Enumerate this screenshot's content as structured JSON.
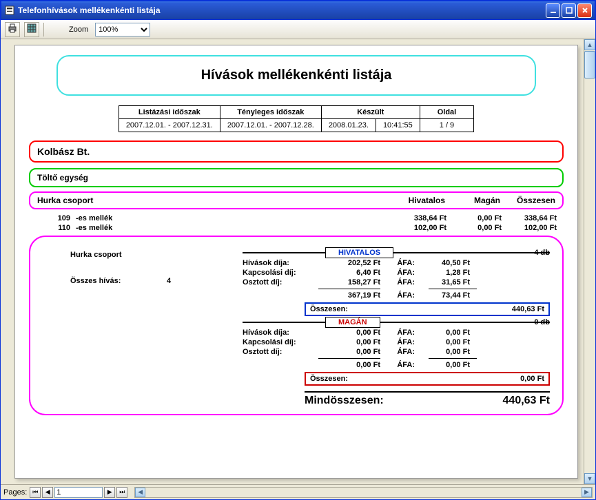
{
  "window": {
    "title": "Telefonhívások mellékenkénti  listája"
  },
  "toolbar": {
    "zoom_label": "Zoom",
    "zoom_value": "100%"
  },
  "report": {
    "title": "Hívások mellékenkénti listája",
    "meta": {
      "headers": {
        "list_period": "Listázási időszak",
        "actual_period": "Tényleges időszak",
        "created": "Készült",
        "page": "Oldal"
      },
      "list_period": "2007.12.01. - 2007.12.31.",
      "actual_period": "2007.12.01. - 2007.12.28.",
      "created_date": "2008.01.23.",
      "created_time": "10:41:55",
      "page": "1 / 9"
    },
    "company": "Kolbász Bt.",
    "unit": "Töltő egység",
    "group": {
      "name": "Hurka csoport",
      "col_official": "Hivatalos",
      "col_private": "Magán",
      "col_total": "Összesen"
    },
    "extensions": [
      {
        "num": "109",
        "label": "-es mellék",
        "official": "338,64 Ft",
        "private": "0,00 Ft",
        "total": "338,64 Ft"
      },
      {
        "num": "110",
        "label": "-es mellék",
        "official": "102,00 Ft",
        "private": "0,00 Ft",
        "total": "102,00 Ft"
      }
    ],
    "summary": {
      "group_name": "Hurka csoport",
      "total_calls_label": "Összes hívás:",
      "total_calls": "4",
      "official": {
        "tag": "HIVATALOS",
        "count": "4 db",
        "rows": [
          {
            "label": "Hívások díja:",
            "v1": "202,52 Ft",
            "afa": "ÁFA:",
            "v2": "40,50 Ft"
          },
          {
            "label": "Kapcsolási díj:",
            "v1": "6,40 Ft",
            "afa": "ÁFA:",
            "v2": "1,28 Ft"
          },
          {
            "label": "Osztott díj:",
            "v1": "158,27 Ft",
            "afa": "ÁFA:",
            "v2": "31,65 Ft"
          }
        ],
        "subtotal": {
          "v1": "367,19 Ft",
          "afa": "ÁFA:",
          "v2": "73,44 Ft"
        },
        "total_label": "Összesen:",
        "total": "440,63 Ft"
      },
      "private": {
        "tag": "MAGÁN",
        "count": "0 db",
        "rows": [
          {
            "label": "Hívások díja:",
            "v1": "0,00 Ft",
            "afa": "ÁFA:",
            "v2": "0,00 Ft"
          },
          {
            "label": "Kapcsolási díj:",
            "v1": "0,00 Ft",
            "afa": "ÁFA:",
            "v2": "0,00 Ft"
          },
          {
            "label": "Osztott díj:",
            "v1": "0,00 Ft",
            "afa": "ÁFA:",
            "v2": "0,00 Ft"
          }
        ],
        "subtotal": {
          "v1": "0,00 Ft",
          "afa": "ÁFA:",
          "v2": "0,00 Ft"
        },
        "total_label": "Összesen:",
        "total": "0,00 Ft"
      },
      "grand_label": "Mindösszesen:",
      "grand_total": "440,63 Ft"
    }
  },
  "statusbar": {
    "pages_label": "Pages:",
    "page_value": "1"
  }
}
